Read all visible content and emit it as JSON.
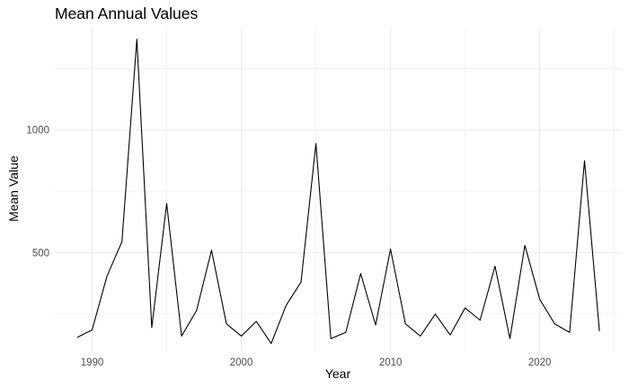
{
  "chart_data": {
    "type": "line",
    "title": "Mean Annual Values",
    "xlabel": "Year",
    "ylabel": "Mean Value",
    "xlim": [
      1987.5,
      2025.5
    ],
    "ylim": [
      95,
      1420
    ],
    "x_ticks": [
      1990,
      2000,
      2010,
      2020
    ],
    "y_ticks": [
      500,
      1000
    ],
    "grid": true,
    "line_color": "#000000",
    "grid_color": "#ebebeb",
    "series": [
      {
        "x": [
          1989,
          1990,
          1991,
          1992,
          1993,
          1994,
          1995,
          1996,
          1997,
          1998,
          1999,
          2000,
          2001,
          2002,
          2003,
          2004,
          2005,
          2006,
          2007,
          2008,
          2009,
          2010,
          2011,
          2012,
          2013,
          2014,
          2015,
          2016,
          2017,
          2018,
          2019,
          2020,
          2021,
          2022,
          2023,
          2024
        ],
        "values": [
          155,
          185,
          405,
          545,
          1370,
          195,
          700,
          160,
          265,
          510,
          210,
          160,
          220,
          130,
          285,
          380,
          945,
          150,
          175,
          415,
          205,
          515,
          210,
          160,
          250,
          165,
          275,
          225,
          445,
          150,
          530,
          310,
          210,
          175,
          875,
          180
        ]
      }
    ]
  }
}
